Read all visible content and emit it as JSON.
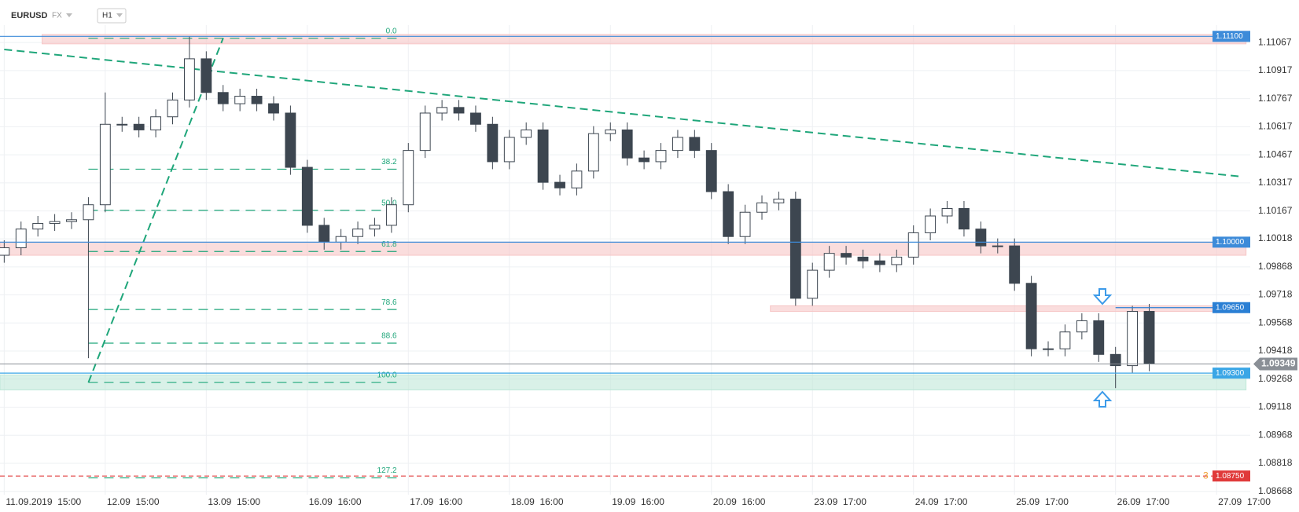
{
  "chart_data": {
    "type": "candlestick",
    "title": "EURUSD",
    "market": "FX",
    "interval": "H1",
    "x": [
      0,
      4,
      8,
      12,
      16,
      20,
      24,
      28,
      32,
      36,
      40,
      44,
      48,
      52,
      56,
      60,
      64,
      68,
      72,
      76,
      80,
      84,
      88,
      92,
      96,
      100,
      104,
      108,
      112,
      116,
      120,
      124,
      128,
      132,
      136,
      140,
      144,
      148,
      152,
      156,
      160,
      164,
      168,
      172,
      176,
      180,
      184,
      188,
      192,
      196,
      200,
      204,
      208,
      212,
      216,
      220,
      224,
      228,
      232,
      236,
      240,
      244,
      248,
      252,
      256,
      260,
      264,
      268,
      272
    ],
    "candles": {
      "open": [
        1.0993,
        1.0997,
        1.1007,
        1.101,
        1.1011,
        1.1012,
        1.102,
        1.1063,
        1.1063,
        1.106,
        1.1067,
        1.1076,
        1.1098,
        1.108,
        1.1074,
        1.1078,
        1.1074,
        1.1069,
        1.104,
        1.1009,
        1.1,
        1.1003,
        1.1007,
        1.1009,
        1.102,
        1.1049,
        1.1069,
        1.1072,
        1.1069,
        1.1063,
        1.1043,
        1.1056,
        1.106,
        1.1032,
        1.1029,
        1.1038,
        1.1058,
        1.106,
        1.1045,
        1.1043,
        1.1049,
        1.1056,
        1.1049,
        1.1027,
        1.1003,
        1.1016,
        1.1021,
        1.1023,
        1.097,
        1.0985,
        1.0994,
        1.0992,
        1.099,
        1.0988,
        1.0992,
        1.1005,
        1.1014,
        1.1018,
        1.1007,
        1.0998,
        1.0998,
        1.0978,
        1.0943,
        1.0943,
        1.0952,
        1.0958,
        1.094,
        1.0934,
        1.0963
      ],
      "high": [
        1.1001,
        1.1011,
        1.1014,
        1.1015,
        1.1016,
        1.1024,
        1.108,
        1.1067,
        1.1067,
        1.1071,
        1.108,
        1.111,
        1.1102,
        1.1084,
        1.1082,
        1.1082,
        1.1078,
        1.1073,
        1.1044,
        1.1013,
        1.1007,
        1.1011,
        1.1013,
        1.1024,
        1.1053,
        1.1073,
        1.1076,
        1.1076,
        1.1073,
        1.1067,
        1.106,
        1.1064,
        1.1064,
        1.1036,
        1.1042,
        1.1062,
        1.1064,
        1.1064,
        1.1049,
        1.1053,
        1.106,
        1.106,
        1.1053,
        1.1031,
        1.102,
        1.1025,
        1.1027,
        1.1027,
        1.0989,
        1.0998,
        1.0998,
        1.0996,
        1.0994,
        1.0996,
        1.1009,
        1.1018,
        1.1022,
        1.1022,
        1.1011,
        1.1002,
        1.1002,
        1.0982,
        1.0947,
        1.0956,
        1.0962,
        1.0962,
        1.0944,
        1.0966,
        1.0967
      ],
      "low": [
        1.0989,
        1.0993,
        1.1003,
        1.1006,
        1.1007,
        1.0938,
        1.1016,
        1.1059,
        1.1056,
        1.1056,
        1.1063,
        1.1072,
        1.1076,
        1.107,
        1.107,
        1.107,
        1.1065,
        1.1036,
        1.1005,
        1.0996,
        1.0996,
        1.0999,
        1.1003,
        1.1005,
        1.1016,
        1.1045,
        1.1065,
        1.1065,
        1.1059,
        1.1039,
        1.1039,
        1.1052,
        1.1028,
        1.1025,
        1.1025,
        1.1034,
        1.1054,
        1.1041,
        1.1039,
        1.1039,
        1.1045,
        1.1045,
        1.1023,
        1.0999,
        1.0999,
        1.1012,
        1.1017,
        1.0966,
        1.0966,
        1.0981,
        1.0988,
        1.0986,
        1.0984,
        1.0984,
        1.0988,
        1.1001,
        1.101,
        1.1003,
        1.0994,
        1.0994,
        1.0974,
        1.0939,
        1.0939,
        1.0939,
        1.0948,
        1.0936,
        1.0922,
        1.093,
        1.0931
      ],
      "close": [
        1.0997,
        1.1007,
        1.101,
        1.1011,
        1.1012,
        1.102,
        1.1063,
        1.1063,
        1.106,
        1.1067,
        1.1076,
        1.1098,
        1.108,
        1.1074,
        1.1078,
        1.1074,
        1.1069,
        1.104,
        1.1009,
        1.1,
        1.1003,
        1.1007,
        1.1009,
        1.102,
        1.1049,
        1.1069,
        1.1072,
        1.1069,
        1.1063,
        1.1043,
        1.1056,
        1.106,
        1.1032,
        1.1029,
        1.1038,
        1.1058,
        1.106,
        1.1045,
        1.1043,
        1.1049,
        1.1056,
        1.1049,
        1.1027,
        1.1003,
        1.1016,
        1.1021,
        1.1023,
        1.097,
        1.0985,
        1.0994,
        1.0992,
        1.099,
        1.0988,
        1.0992,
        1.1005,
        1.1014,
        1.1018,
        1.1007,
        1.0998,
        1.0998,
        1.0978,
        1.0943,
        1.0943,
        1.0952,
        1.0958,
        1.094,
        1.0934,
        1.0963,
        1.0935
      ]
    },
    "up_color": "#ffffff",
    "down_color": "#3d4650",
    "xlim": [
      -1,
      296
    ],
    "ylim": [
      1.0865,
      1.1116
    ],
    "xticks": [
      {
        "value": 0,
        "label": "11.09.2019  15:00"
      },
      {
        "value": 24,
        "label": "12.09  15:00"
      },
      {
        "value": 48,
        "label": "13.09  15:00"
      },
      {
        "value": 72,
        "label": "16.09  16:00"
      },
      {
        "value": 96,
        "label": "17.09  16:00"
      },
      {
        "value": 120,
        "label": "18.09  16:00"
      },
      {
        "value": 144,
        "label": "19.09  16:00"
      },
      {
        "value": 168,
        "label": "20.09  16:00"
      },
      {
        "value": 192,
        "label": "23.09  17:00"
      },
      {
        "value": 216,
        "label": "24.09  17:00"
      },
      {
        "value": 240,
        "label": "25.09  17:00"
      },
      {
        "value": 264,
        "label": "26.09  17:00"
      },
      {
        "value": 288,
        "label": "27.09  17:00"
      }
    ],
    "yticks": [
      1.11067,
      1.10917,
      1.10767,
      1.10617,
      1.10467,
      1.10317,
      1.10167,
      1.10018,
      1.09868,
      1.09718,
      1.09568,
      1.09418,
      1.09268,
      1.09118,
      1.08968,
      1.08818,
      1.08668
    ],
    "grid": true,
    "zones": [
      {
        "x": [
          9,
          295
        ],
        "y": [
          1.1111,
          1.1106
        ],
        "color": "#f6c6c6"
      },
      {
        "x": [
          -1,
          295
        ],
        "y": [
          1.1,
          1.0993
        ],
        "color": "#f6c6c6"
      },
      {
        "x": [
          182,
          295
        ],
        "y": [
          1.0966,
          1.0963
        ],
        "color": "#f6c6c6"
      },
      {
        "x": [
          -1,
          295
        ],
        "y": [
          1.0929,
          1.0921
        ],
        "color": "#bfe8d8"
      }
    ],
    "trendlines": [
      {
        "x": [
          0,
          294
        ],
        "y": [
          1.1103,
          1.1035
        ],
        "color": "#1fa67a"
      },
      {
        "x": [
          20,
          52
        ],
        "y": [
          1.0925,
          1.1109
        ],
        "color": "#1fa67a"
      }
    ],
    "fib": {
      "x": [
        20,
        94
      ],
      "color": "#1fa67a",
      "labels": [
        "0.0",
        "38.2",
        "50.0",
        "61.8",
        "78.6",
        "88.6",
        "100.0",
        "127.2"
      ],
      "prices": [
        1.1109,
        1.1039,
        1.1017,
        1.0995,
        1.0964,
        1.0946,
        1.0925,
        1.0874
      ]
    },
    "levels": [
      {
        "value": 1.111,
        "label": "1.11100",
        "color": "#3d8bd9",
        "x0": -1
      },
      {
        "value": 1.1,
        "label": "1.10000",
        "color": "#3d8bd9",
        "x0": -1
      },
      {
        "value": 1.0965,
        "label": "1.09650",
        "color": "#2a7fd4",
        "x0": 264
      },
      {
        "value": 1.093,
        "label": "1.09300",
        "color": "#3aa6e6",
        "x0": -1
      },
      {
        "value": 1.0875,
        "label": "1.08750",
        "color": "#e03a3a",
        "x0": -1,
        "dashed": true,
        "badge": "3"
      },
      {
        "value": 1.09349,
        "label": "1.09349",
        "color": "#8a8f96",
        "x0": -1,
        "current": true
      }
    ]
  }
}
